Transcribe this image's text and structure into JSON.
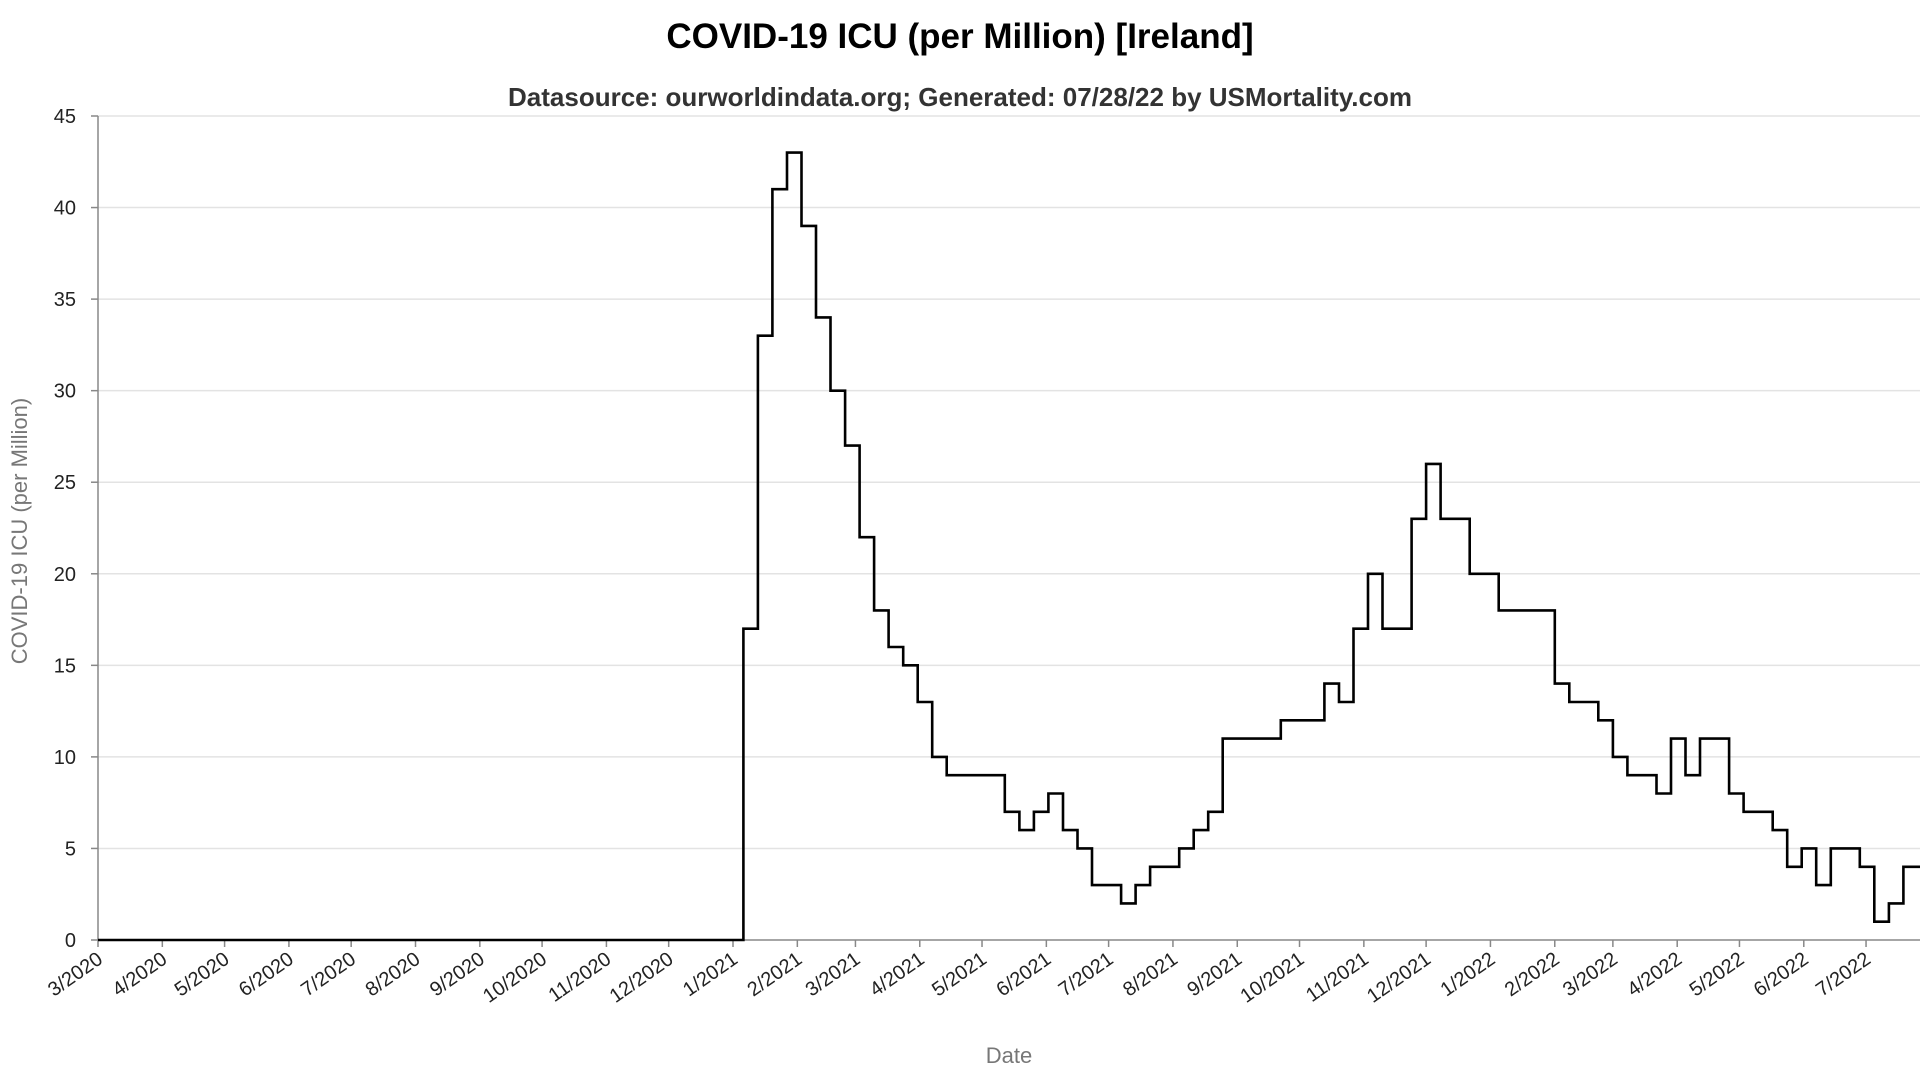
{
  "chart_data": {
    "type": "line",
    "title": "COVID-19 ICU (per Million) [Ireland]",
    "subtitle": "Datasource: ourworldindata.org; Generated: 07/28/22 by USMortality.com",
    "xlabel": "Date",
    "ylabel": "COVID-19 ICU (per Million)",
    "ylim": [
      0,
      45
    ],
    "yticks": [
      0,
      5,
      10,
      15,
      20,
      25,
      30,
      35,
      40,
      45
    ],
    "xlim": [
      "2020-03-01",
      "2022-07-27"
    ],
    "xticks": [
      "3/2020",
      "4/2020",
      "5/2020",
      "6/2020",
      "7/2020",
      "8/2020",
      "9/2020",
      "10/2020",
      "11/2020",
      "12/2020",
      "1/2021",
      "2/2021",
      "3/2021",
      "4/2021",
      "5/2021",
      "6/2021",
      "7/2021",
      "8/2021",
      "9/2021",
      "10/2021",
      "11/2021",
      "12/2021",
      "1/2022",
      "2/2022",
      "3/2022",
      "4/2022",
      "5/2022",
      "6/2022",
      "7/2022"
    ],
    "grid": true,
    "step": true,
    "series": [
      {
        "color": "#000000",
        "points": [
          [
            "2020-03-01",
            0
          ],
          [
            "2021-01-05",
            0
          ],
          [
            "2021-01-06",
            17
          ],
          [
            "2021-01-12",
            17
          ],
          [
            "2021-01-13",
            33
          ],
          [
            "2021-01-19",
            33
          ],
          [
            "2021-01-20",
            41
          ],
          [
            "2021-01-26",
            41
          ],
          [
            "2021-01-27",
            43
          ],
          [
            "2021-02-02",
            43
          ],
          [
            "2021-02-03",
            39
          ],
          [
            "2021-02-09",
            39
          ],
          [
            "2021-02-10",
            34
          ],
          [
            "2021-02-16",
            34
          ],
          [
            "2021-02-17",
            30
          ],
          [
            "2021-02-23",
            30
          ],
          [
            "2021-02-24",
            27
          ],
          [
            "2021-03-02",
            27
          ],
          [
            "2021-03-03",
            22
          ],
          [
            "2021-03-09",
            22
          ],
          [
            "2021-03-10",
            18
          ],
          [
            "2021-03-16",
            18
          ],
          [
            "2021-03-17",
            16
          ],
          [
            "2021-03-23",
            16
          ],
          [
            "2021-03-24",
            15
          ],
          [
            "2021-03-30",
            15
          ],
          [
            "2021-03-31",
            13
          ],
          [
            "2021-04-06",
            13
          ],
          [
            "2021-04-07",
            10
          ],
          [
            "2021-04-13",
            10
          ],
          [
            "2021-04-14",
            9
          ],
          [
            "2021-05-11",
            9
          ],
          [
            "2021-05-12",
            7
          ],
          [
            "2021-05-18",
            7
          ],
          [
            "2021-05-19",
            6
          ],
          [
            "2021-05-25",
            6
          ],
          [
            "2021-05-26",
            7
          ],
          [
            "2021-06-01",
            7
          ],
          [
            "2021-06-02",
            8
          ],
          [
            "2021-06-08",
            8
          ],
          [
            "2021-06-09",
            6
          ],
          [
            "2021-06-15",
            6
          ],
          [
            "2021-06-16",
            5
          ],
          [
            "2021-06-22",
            5
          ],
          [
            "2021-06-23",
            3
          ],
          [
            "2021-07-06",
            3
          ],
          [
            "2021-07-07",
            2
          ],
          [
            "2021-07-13",
            2
          ],
          [
            "2021-07-14",
            3
          ],
          [
            "2021-07-20",
            3
          ],
          [
            "2021-07-21",
            4
          ],
          [
            "2021-08-03",
            4
          ],
          [
            "2021-08-04",
            5
          ],
          [
            "2021-08-10",
            5
          ],
          [
            "2021-08-11",
            6
          ],
          [
            "2021-08-17",
            6
          ],
          [
            "2021-08-18",
            7
          ],
          [
            "2021-08-24",
            7
          ],
          [
            "2021-08-25",
            11
          ],
          [
            "2021-09-21",
            11
          ],
          [
            "2021-09-22",
            12
          ],
          [
            "2021-10-12",
            12
          ],
          [
            "2021-10-13",
            14
          ],
          [
            "2021-10-19",
            14
          ],
          [
            "2021-10-20",
            13
          ],
          [
            "2021-10-26",
            13
          ],
          [
            "2021-10-27",
            17
          ],
          [
            "2021-11-02",
            17
          ],
          [
            "2021-11-03",
            20
          ],
          [
            "2021-11-09",
            20
          ],
          [
            "2021-11-10",
            17
          ],
          [
            "2021-11-23",
            17
          ],
          [
            "2021-11-24",
            23
          ],
          [
            "2021-11-30",
            23
          ],
          [
            "2021-12-01",
            26
          ],
          [
            "2021-12-07",
            26
          ],
          [
            "2021-12-08",
            23
          ],
          [
            "2021-12-21",
            23
          ],
          [
            "2021-12-22",
            20
          ],
          [
            "2022-01-04",
            20
          ],
          [
            "2022-01-05",
            18
          ],
          [
            "2022-01-31",
            18
          ],
          [
            "2022-02-01",
            14
          ],
          [
            "2022-02-07",
            14
          ],
          [
            "2022-02-08",
            13
          ],
          [
            "2022-02-21",
            13
          ],
          [
            "2022-02-22",
            12
          ],
          [
            "2022-02-28",
            12
          ],
          [
            "2022-03-01",
            10
          ],
          [
            "2022-03-07",
            10
          ],
          [
            "2022-03-08",
            9
          ],
          [
            "2022-03-21",
            9
          ],
          [
            "2022-03-22",
            8
          ],
          [
            "2022-03-28",
            8
          ],
          [
            "2022-03-29",
            11
          ],
          [
            "2022-04-04",
            11
          ],
          [
            "2022-04-05",
            9
          ],
          [
            "2022-04-11",
            9
          ],
          [
            "2022-04-12",
            11
          ],
          [
            "2022-04-25",
            11
          ],
          [
            "2022-04-26",
            8
          ],
          [
            "2022-05-02",
            8
          ],
          [
            "2022-05-03",
            7
          ],
          [
            "2022-05-16",
            7
          ],
          [
            "2022-05-17",
            6
          ],
          [
            "2022-05-23",
            6
          ],
          [
            "2022-05-24",
            4
          ],
          [
            "2022-05-30",
            4
          ],
          [
            "2022-05-31",
            5
          ],
          [
            "2022-06-06",
            5
          ],
          [
            "2022-06-07",
            3
          ],
          [
            "2022-06-13",
            3
          ],
          [
            "2022-06-14",
            5
          ],
          [
            "2022-06-27",
            5
          ],
          [
            "2022-06-28",
            4
          ],
          [
            "2022-07-04",
            4
          ],
          [
            "2022-07-05",
            1
          ],
          [
            "2022-07-11",
            1
          ],
          [
            "2022-07-12",
            2
          ],
          [
            "2022-07-18",
            2
          ],
          [
            "2022-07-19",
            4
          ],
          [
            "2022-07-27",
            4
          ]
        ]
      }
    ]
  }
}
